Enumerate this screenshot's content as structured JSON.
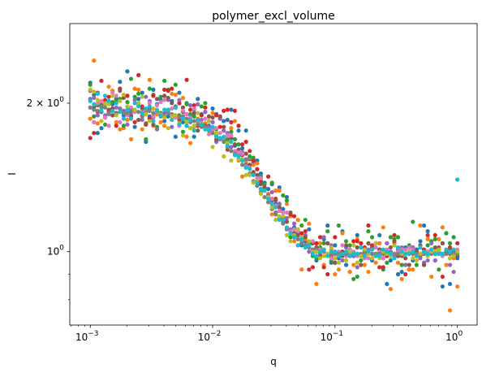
{
  "chart_data": {
    "type": "scatter",
    "title": "polymer_excl_volume",
    "xlabel": "q",
    "ylabel": "I",
    "xscale": "log",
    "yscale": "log",
    "xlim": [
      0.00068,
      1.45
    ],
    "ylim": [
      0.71,
      2.9
    ],
    "grid": false,
    "xticks": [
      {
        "value": 0.001,
        "base": "10",
        "exp": "−3"
      },
      {
        "value": 0.01,
        "base": "10",
        "exp": "−2"
      },
      {
        "value": 0.1,
        "base": "10",
        "exp": "−1"
      },
      {
        "value": 1,
        "base": "10",
        "exp": "0"
      }
    ],
    "yticks": [
      {
        "value": 1,
        "base": "10",
        "exp": "0",
        "prefix": ""
      },
      {
        "value": 2,
        "base": "10",
        "exp": "0",
        "prefix": "2 × "
      }
    ],
    "yminor_ticks": [
      0.8,
      0.9
    ],
    "num_series": 10,
    "colors": [
      "#1f77b4",
      "#ff7f0e",
      "#2ca02c",
      "#d62728",
      "#9467bd",
      "#8c564b",
      "#e377c2",
      "#7f7f7f",
      "#bcbd22",
      "#17becf"
    ],
    "x": [
      0.001,
      0.001072,
      0.001149,
      0.001233,
      0.001322,
      0.001417,
      0.00152,
      0.00163,
      0.001748,
      0.001874,
      0.002009,
      0.002154,
      0.00231,
      0.002477,
      0.002656,
      0.002848,
      0.003054,
      0.003275,
      0.003511,
      0.003765,
      0.004037,
      0.004329,
      0.004642,
      0.004977,
      0.005337,
      0.005722,
      0.006136,
      0.006579,
      0.007055,
      0.007565,
      0.008111,
      0.008697,
      0.009326,
      0.01,
      0.010723,
      0.011498,
      0.012328,
      0.013219,
      0.014175,
      0.015199,
      0.016298,
      0.017475,
      0.018738,
      0.020092,
      0.021544,
      0.023101,
      0.024771,
      0.026561,
      0.02848,
      0.030539,
      0.032745,
      0.035112,
      0.037649,
      0.04037,
      0.043288,
      0.046416,
      0.04977,
      0.053367,
      0.057224,
      0.061359,
      0.065793,
      0.070548,
      0.075646,
      0.081113,
      0.086975,
      0.09326,
      0.1,
      0.107227,
      0.114976,
      0.123285,
      0.132194,
      0.141747,
      0.151991,
      0.162975,
      0.174753,
      0.187382,
      0.200923,
      0.215443,
      0.231013,
      0.247708,
      0.265609,
      0.284804,
      0.305386,
      0.327455,
      0.351119,
      0.376494,
      0.403702,
      0.432876,
      0.464159,
      0.497702,
      0.53367,
      0.572237,
      0.613591,
      0.657933,
      0.70548,
      0.756463,
      0.811131,
      0.869749,
      0.932603,
      1.0
    ],
    "series": [
      {
        "values": [
          2.2,
          2.08,
          1.74,
          1.78,
          1.87,
          1.93,
          1.99,
          2.04,
          2.21,
          1.89,
          2.32,
          1.92,
          1.79,
          2.04,
          2.1,
          1.67,
          1.88,
          2.13,
          1.99,
          2.03,
          1.84,
          1.88,
          2.02,
          1.71,
          2.1,
          1.83,
          2.0,
          1.89,
          1.71,
          2.04,
          1.9,
          1.92,
          1.8,
          1.95,
          1.9,
          1.7,
          1.84,
          1.85,
          1.94,
          1.64,
          1.76,
          1.62,
          1.76,
          1.54,
          1.52,
          1.53,
          1.44,
          1.38,
          1.34,
          1.37,
          1.25,
          1.35,
          1.22,
          1.29,
          1.18,
          1.12,
          1.09,
          1.03,
          1.05,
          1.11,
          1.04,
          0.96,
          1.01,
          1.06,
          1.13,
          0.95,
          1.03,
          0.97,
          1.1,
          0.94,
          0.91,
          0.98,
          1.08,
          0.94,
          1.01,
          1.0,
          0.96,
          0.99,
          1.08,
          0.97,
          0.86,
          0.96,
          1.04,
          0.9,
          0.91,
          1.02,
          0.92,
          0.96,
          1.01,
          1.05,
          1.13,
          1.1,
          1.01,
          0.96,
          1.01,
          0.85,
          1.09,
          0.86,
          0.98,
          0.97
        ]
      },
      {
        "values": [
          1.86,
          2.44,
          1.82,
          2.0,
          1.99,
          2.16,
          2.12,
          1.83,
          1.77,
          1.78,
          1.85,
          1.69,
          2.14,
          2.13,
          1.77,
          1.91,
          2.23,
          1.8,
          1.9,
          1.83,
          1.8,
          1.92,
          2.09,
          2.08,
          2.0,
          2.05,
          1.71,
          1.66,
          1.79,
          1.86,
          1.81,
          1.82,
          1.88,
          1.91,
          1.68,
          1.87,
          1.76,
          1.68,
          1.78,
          1.84,
          1.53,
          1.42,
          1.52,
          1.55,
          1.5,
          1.51,
          1.41,
          1.33,
          1.31,
          1.19,
          1.33,
          1.33,
          1.17,
          1.25,
          1.18,
          1.05,
          1.16,
          0.92,
          1.06,
          1.14,
          0.99,
          0.86,
          1.04,
          0.94,
          0.99,
          1.01,
          0.9,
          0.92,
          1.09,
          0.96,
          0.91,
          0.94,
          1.06,
          1.04,
          0.94,
          0.91,
          1.01,
          0.95,
          1.04,
          1.12,
          1.04,
          0.84,
          1.04,
          0.95,
          0.88,
          0.99,
          0.92,
          0.92,
          0.98,
          1.13,
          0.94,
          1.06,
          0.89,
          0.96,
          1.06,
          1.12,
          0.94,
          0.76,
          0.97,
          0.85
        ]
      },
      {
        "values": [
          2.18,
          1.88,
          1.98,
          1.98,
          1.81,
          1.92,
          2.01,
          2.02,
          2.04,
          1.8,
          2.01,
          2.24,
          2.06,
          2.09,
          1.89,
          1.69,
          2.14,
          2.08,
          1.79,
          2.06,
          2.22,
          2.13,
          1.88,
          2.18,
          1.89,
          1.75,
          1.99,
          1.9,
          1.88,
          1.84,
          1.97,
          2.0,
          1.84,
          1.77,
          1.77,
          1.86,
          1.69,
          1.69,
          1.75,
          1.69,
          1.65,
          1.59,
          1.5,
          1.56,
          1.55,
          1.47,
          1.42,
          1.37,
          1.3,
          1.38,
          1.2,
          1.25,
          1.3,
          1.27,
          1.07,
          1.08,
          1.03,
          1.13,
          1.16,
          1.03,
          0.98,
          0.97,
          1.02,
          1.04,
          1.1,
          0.96,
          0.95,
          1.13,
          1.0,
          1.05,
          1.03,
          0.88,
          0.89,
          0.96,
          1.0,
          1.1,
          1.07,
          0.99,
          1.01,
          0.92,
          0.95,
          1.07,
          1.06,
          1.07,
          0.94,
          0.94,
          1.03,
          1.15,
          0.94,
          1.02,
          0.95,
          1.03,
          1.05,
          1.06,
          0.92,
          1.04,
          1.09,
          1.04,
          1.07,
          0.98
        ]
      },
      {
        "values": [
          1.7,
          1.74,
          1.92,
          2.22,
          2.03,
          2.06,
          1.95,
          1.8,
          2.14,
          2.08,
          2.07,
          1.95,
          1.83,
          2.28,
          1.97,
          1.81,
          1.86,
          2.07,
          1.93,
          1.9,
          2.13,
          2.12,
          2.14,
          1.88,
          2.0,
          1.92,
          2.23,
          1.94,
          1.98,
          1.8,
          1.89,
          1.96,
          1.79,
          1.74,
          1.89,
          1.79,
          1.93,
          1.94,
          1.83,
          1.93,
          1.8,
          1.65,
          1.67,
          1.6,
          1.53,
          1.47,
          1.39,
          1.35,
          1.42,
          1.28,
          1.28,
          1.21,
          1.17,
          1.15,
          1.19,
          1.18,
          1.1,
          1.09,
          1.1,
          0.92,
          0.93,
          1.04,
          1.07,
          0.93,
          0.9,
          0.98,
          1.07,
          0.99,
          1.0,
          1.0,
          0.98,
          1.05,
          1.05,
          1.04,
          1.02,
          1.13,
          1.03,
          1.04,
          0.93,
          0.93,
          0.98,
          0.98,
          1.08,
          1.0,
          1.0,
          0.9,
          1.0,
          1.02,
          1.0,
          0.98,
          1.01,
          1.08,
          1.0,
          1.08,
          1.0,
          0.89,
          1.0,
          1.02,
          0.98,
          1.04
        ]
      },
      {
        "values": [
          2.04,
          2.05,
          1.89,
          1.97,
          1.89,
          1.9,
          1.93,
          1.96,
          1.95,
          1.93,
          1.81,
          1.89,
          2.03,
          1.98,
          1.85,
          2.06,
          2.02,
          1.87,
          1.77,
          1.89,
          1.91,
          2.03,
          1.79,
          1.96,
          2.03,
          1.88,
          1.9,
          1.98,
          1.94,
          1.99,
          1.85,
          1.92,
          1.79,
          1.83,
          1.67,
          1.86,
          1.76,
          1.74,
          1.63,
          1.65,
          1.57,
          1.59,
          1.54,
          1.5,
          1.44,
          1.38,
          1.34,
          1.35,
          1.3,
          1.32,
          1.2,
          1.25,
          1.2,
          1.17,
          1.11,
          1.14,
          1.1,
          1.06,
          1.08,
          1.0,
          1.01,
          1.02,
          0.99,
          1.07,
          1.04,
          1.03,
          0.95,
          0.99,
          0.96,
          1.02,
          0.98,
          0.98,
          0.93,
          0.98,
          1.01,
          1.01,
          0.99,
          1.04,
          1.01,
          0.99,
          1.04,
          1.0,
          0.98,
          1.01,
          1.02,
          0.94,
          1.0,
          1.02,
          0.99,
          0.97,
          0.95,
          0.96,
          1.04,
          0.96,
          0.99,
          0.99,
          0.99,
          0.94,
          0.91,
          0.99
        ]
      },
      {
        "values": [
          2.12,
          1.96,
          2.1,
          1.92,
          1.87,
          1.94,
          1.89,
          1.91,
          2.12,
          2.05,
          1.91,
          1.88,
          1.92,
          1.85,
          1.95,
          1.82,
          1.95,
          1.81,
          2.04,
          1.91,
          2.07,
          2.05,
          2.0,
          1.97,
          1.85,
          1.96,
          1.8,
          1.78,
          1.91,
          1.76,
          1.81,
          1.8,
          1.88,
          1.87,
          1.69,
          1.88,
          1.79,
          1.61,
          1.7,
          1.65,
          1.61,
          1.57,
          1.58,
          1.5,
          1.45,
          1.43,
          1.37,
          1.35,
          1.29,
          1.27,
          1.27,
          1.23,
          1.15,
          1.15,
          1.2,
          1.09,
          1.08,
          1.04,
          1.07,
          1.04,
          1.04,
          1.02,
          0.98,
          1.01,
          1.04,
          0.99,
          0.95,
          0.98,
          0.98,
          1.03,
          1.01,
          0.99,
          1.02,
          0.94,
          0.98,
          1.04,
          1.02,
          0.98,
          1.01,
          1.0,
          0.99,
          1.02,
          1.05,
          0.98,
          0.98,
          0.97,
          0.94,
          1.0,
          1.0,
          1.03,
          0.94,
          1.0,
          1.01,
          1.02,
          1.02,
          1.04,
          1.0,
          1.01,
          1.0,
          0.98
        ]
      },
      {
        "values": [
          1.96,
          1.83,
          2.0,
          2.02,
          1.87,
          1.8,
          2.1,
          2.07,
          1.83,
          1.86,
          1.89,
          1.96,
          1.92,
          2.0,
          1.92,
          1.93,
          2.0,
          1.88,
          1.98,
          2.01,
          2.03,
          1.93,
          1.95,
          1.87,
          1.8,
          1.93,
          1.9,
          1.87,
          1.95,
          1.83,
          1.82,
          1.86,
          1.73,
          1.77,
          1.78,
          1.74,
          1.7,
          1.72,
          1.72,
          1.6,
          1.59,
          1.58,
          1.49,
          1.48,
          1.43,
          1.41,
          1.41,
          1.33,
          1.29,
          1.28,
          1.24,
          1.21,
          1.2,
          1.2,
          1.1,
          1.11,
          1.1,
          1.05,
          1.03,
          1.02,
          1.05,
          1.0,
          1.01,
          1.01,
          0.99,
          0.97,
          1.0,
          1.0,
          1.03,
          0.98,
          1.01,
          1.0,
          0.98,
          0.98,
          0.97,
          0.97,
          1.01,
          1.02,
          1.0,
          0.97,
          1.01,
          0.98,
          0.99,
          1.0,
          1.01,
          1.01,
          1.02,
          1.01,
          0.99,
          1.02,
          0.99,
          1.0,
          1.01,
          1.0,
          1.0,
          0.98,
          1.01,
          0.99,
          0.98,
          1.01
        ]
      },
      {
        "values": [
          1.96,
          1.94,
          1.93,
          1.96,
          1.96,
          1.91,
          1.93,
          1.9,
          1.95,
          1.91,
          1.91,
          1.93,
          1.94,
          1.92,
          1.88,
          1.91,
          1.93,
          1.91,
          1.94,
          1.88,
          1.88,
          1.91,
          1.9,
          1.89,
          1.88,
          1.88,
          1.86,
          1.83,
          1.84,
          1.81,
          1.79,
          1.79,
          1.76,
          1.74,
          1.72,
          1.69,
          1.67,
          1.63,
          1.6,
          1.58,
          1.54,
          1.5,
          1.48,
          1.44,
          1.39,
          1.36,
          1.32,
          1.29,
          1.26,
          1.22,
          1.19,
          1.17,
          1.14,
          1.11,
          1.09,
          1.07,
          1.06,
          1.04,
          1.03,
          1.02,
          1.01,
          1.01,
          1.0,
          1.0,
          0.99,
          0.99,
          0.99,
          0.99,
          0.99,
          0.99,
          0.99,
          0.99,
          0.99,
          0.99,
          0.99,
          0.99,
          0.99,
          0.99,
          0.99,
          0.99,
          0.99,
          0.99,
          0.99,
          0.99,
          0.99,
          0.99,
          0.99,
          0.99,
          0.99,
          0.99,
          0.99,
          0.99,
          0.99,
          0.99,
          0.99,
          0.99,
          0.99,
          0.99,
          0.99,
          0.99
        ]
      },
      {
        "values": [
          2.13,
          2.11,
          2.03,
          1.84,
          2.0,
          1.99,
          2.07,
          1.89,
          2.02,
          2.08,
          1.97,
          1.86,
          1.94,
          2.0,
          2.06,
          1.9,
          1.84,
          1.95,
          1.94,
          1.9,
          1.87,
          1.78,
          1.88,
          1.89,
          1.82,
          1.72,
          1.83,
          1.78,
          1.8,
          1.91,
          1.82,
          1.77,
          1.84,
          1.63,
          1.74,
          1.7,
          1.56,
          1.66,
          1.53,
          1.57,
          1.54,
          1.54,
          1.43,
          1.43,
          1.38,
          1.39,
          1.31,
          1.33,
          1.29,
          1.23,
          1.16,
          1.18,
          1.18,
          1.08,
          1.05,
          1.08,
          1.11,
          1.07,
          1.02,
          1.05,
          1.0,
          1.0,
          0.97,
          0.98,
          0.99,
          1.02,
          0.97,
          0.95,
          0.99,
          0.96,
          1.0,
          1.03,
          0.95,
          0.98,
          1.01,
          0.99,
          0.97,
          1.04,
          0.97,
          1.0,
          0.99,
          0.98,
          1.03,
          1.02,
          0.99,
          0.99,
          1.0,
          0.97,
          0.96,
          0.99,
          1.0,
          0.98,
          1.0,
          1.0,
          1.01,
          0.99,
          1.01,
          0.97,
          0.98,
          1.0
        ]
      },
      {
        "values": [
          2.02,
          1.99,
          2.09,
          1.93,
          2.07,
          2.02,
          1.93,
          2.0,
          1.92,
          1.86,
          1.94,
          1.86,
          2.0,
          1.97,
          1.91,
          1.95,
          1.97,
          1.84,
          1.93,
          1.89,
          1.94,
          1.94,
          1.85,
          1.96,
          1.81,
          1.86,
          1.8,
          1.85,
          1.76,
          1.85,
          1.81,
          1.77,
          1.77,
          1.79,
          1.71,
          1.7,
          1.71,
          1.64,
          1.67,
          1.57,
          1.56,
          1.53,
          1.48,
          1.47,
          1.43,
          1.38,
          1.34,
          1.33,
          1.28,
          1.25,
          1.23,
          1.16,
          1.16,
          1.12,
          1.09,
          1.07,
          1.03,
          1.06,
          1.02,
          1.03,
          0.99,
          0.98,
          1.0,
          1.01,
          0.98,
          1.0,
          1.0,
          0.98,
          0.99,
          1.0,
          0.98,
          0.99,
          0.99,
          1.02,
          0.98,
          1.0,
          1.01,
          0.98,
          0.98,
          1.01,
          1.0,
          0.99,
          0.97,
          1.02,
          1.0,
          0.99,
          0.99,
          1.0,
          0.98,
          1.02,
          1.0,
          0.99,
          1.01,
          0.99,
          0.99,
          0.99,
          1.01,
          1.0,
          1.01,
          1.4
        ]
      }
    ]
  }
}
